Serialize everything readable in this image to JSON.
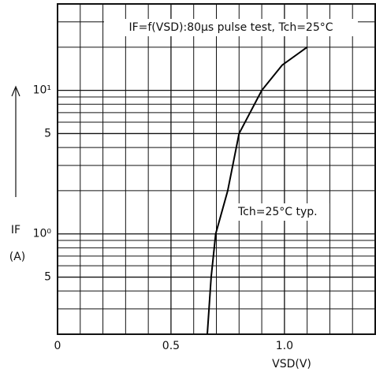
{
  "chart_data": {
    "type": "line",
    "title": "IF=f(VSD):80μs pulse test, Tch=25°C",
    "annotation": "Tch=25°C typ.",
    "x_label": "VSD(V)",
    "y_label": "IF",
    "y_unit": "(A)",
    "log_y": true,
    "grid": true,
    "xlim": [
      0,
      1.4
    ],
    "ylim": [
      0.2,
      40
    ],
    "xticks": [
      0,
      0.5,
      {
        "value": 1,
        "label": "1.0"
      }
    ],
    "yticks": [
      {
        "value": 0.5,
        "label": "5"
      },
      {
        "value": 1,
        "label": "10⁰"
      },
      5,
      {
        "value": 10,
        "label": "10¹"
      }
    ],
    "x_minor_ticks": [
      0.1,
      0.2,
      0.3,
      0.4,
      0.6,
      0.7,
      0.8,
      0.9,
      1.1,
      1.2,
      1.3
    ],
    "y_minor_ticks": [
      0.3,
      0.4,
      0.6,
      0.7,
      0.8,
      0.9,
      2,
      3,
      4,
      6,
      7,
      8,
      9,
      20,
      30
    ],
    "series": [
      {
        "name": "Tch=25°C typ.",
        "color": "#000000",
        "x": [
          0.66,
          0.677,
          0.697,
          0.75,
          0.8,
          0.9,
          0.99,
          1.1
        ],
        "values": [
          0.2,
          0.5,
          1,
          2,
          5,
          10,
          15,
          20
        ]
      }
    ]
  }
}
